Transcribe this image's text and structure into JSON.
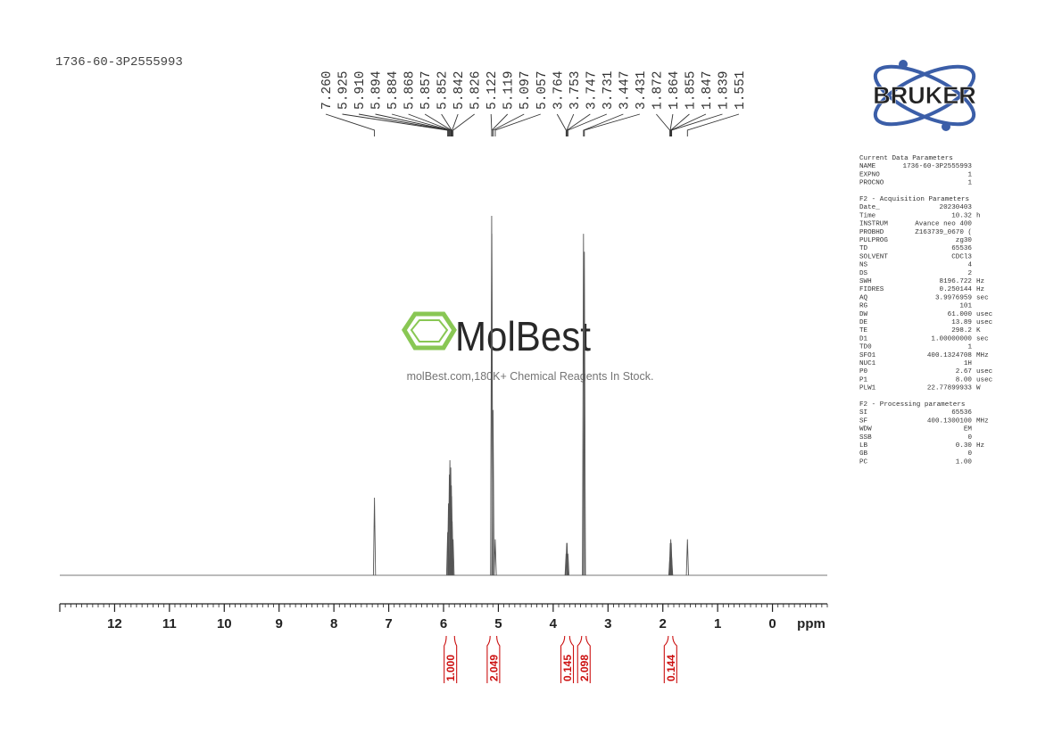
{
  "chart_data": {
    "type": "nmr",
    "title": "1736-60-3P2555993",
    "x_label": "ppm",
    "xlim": [
      13,
      -1
    ],
    "xticks": [
      12,
      11,
      10,
      9,
      8,
      7,
      6,
      5,
      4,
      3,
      2,
      1,
      0
    ],
    "peak_labels": [
      {
        "value": 7.26,
        "label": "7.260"
      },
      5.925,
      {
        "value": 5.91,
        "label": "5.910"
      },
      5.894,
      5.884,
      5.868,
      5.857,
      5.852,
      5.842,
      5.826,
      5.122,
      5.119,
      5.097,
      5.057,
      3.764,
      3.753,
      3.747,
      3.731,
      3.447,
      3.431,
      1.872,
      1.864,
      1.855,
      1.847,
      1.839,
      1.551
    ],
    "peak_intensity": [
      21.6,
      12,
      20,
      28,
      32,
      30,
      25,
      22,
      15,
      10,
      100,
      95,
      46,
      10,
      6,
      9,
      9,
      6,
      95,
      90,
      5,
      9,
      10,
      9,
      5,
      10
    ],
    "integrals": [
      {
        "value": 1,
        "label": "1.000",
        "range": [
          5.95,
          5.8
        ]
      },
      {
        "value": 2.049,
        "label": "2.049",
        "range": [
          5.15,
          5.03
        ]
      },
      {
        "value": 0.145,
        "label": "0.145",
        "range": [
          3.79,
          3.7
        ]
      },
      {
        "value": 2.098,
        "label": "2.098",
        "range": [
          3.48,
          3.4
        ]
      },
      {
        "value": 0.144,
        "label": "0.144",
        "range": [
          1.9,
          1.82
        ]
      }
    ],
    "color": "#555555",
    "integral_color": "#cc1111"
  },
  "logo": "BRUKER",
  "watermark": {
    "name": "MolBest",
    "tagline": "molBest.com,180K+ Chemical Reagents In Stock."
  },
  "parameters": [
    {
      "title": "Current Data Parameters",
      "rows": [
        [
          "NAME",
          "1736-60-3P2555993"
        ],
        [
          "EXPNO",
          "1"
        ],
        [
          "PROCNO",
          "1"
        ]
      ]
    },
    {
      "title": "F2 - Acquisition Parameters",
      "rows": [
        [
          "Date_",
          "20230403"
        ],
        [
          "Time",
          "10.32",
          "h"
        ],
        [
          "INSTRUM",
          "Avance neo 400"
        ],
        [
          "PROBHD",
          "Z163739_0670 ("
        ],
        [
          "PULPROG",
          "zg30"
        ],
        [
          "TD",
          "65536"
        ],
        [
          "SOLVENT",
          "CDCl3"
        ],
        [
          "NS",
          "4"
        ],
        [
          "DS",
          "2"
        ],
        [
          "SWH",
          "8196.722",
          "Hz"
        ],
        [
          "FIDRES",
          "0.250144",
          "Hz"
        ],
        [
          "AQ",
          "3.9976959",
          "sec"
        ],
        [
          "RG",
          "101"
        ],
        [
          "DW",
          "61.000",
          "usec"
        ],
        [
          "DE",
          "13.89",
          "usec"
        ],
        [
          "TE",
          "298.2",
          "K"
        ],
        [
          "D1",
          "1.00000000",
          "sec"
        ],
        [
          "TD0",
          "1"
        ],
        [
          "SFO1",
          "400.1324708",
          "MHz"
        ],
        [
          "NUC1",
          "1H"
        ],
        [
          "P0",
          "2.67",
          "usec"
        ],
        [
          "P1",
          "8.00",
          "usec"
        ],
        [
          "PLW1",
          "22.77899933",
          "W"
        ]
      ]
    },
    {
      "title": "F2 - Processing parameters",
      "rows": [
        [
          "SI",
          "65536"
        ],
        [
          "SF",
          "400.1300100",
          "MHz"
        ],
        [
          "WDW",
          "EM"
        ],
        [
          "SSB",
          "0"
        ],
        [
          "LB",
          "0.30",
          "Hz"
        ],
        [
          "GB",
          "0"
        ],
        [
          "PC",
          "1.00"
        ]
      ]
    }
  ]
}
